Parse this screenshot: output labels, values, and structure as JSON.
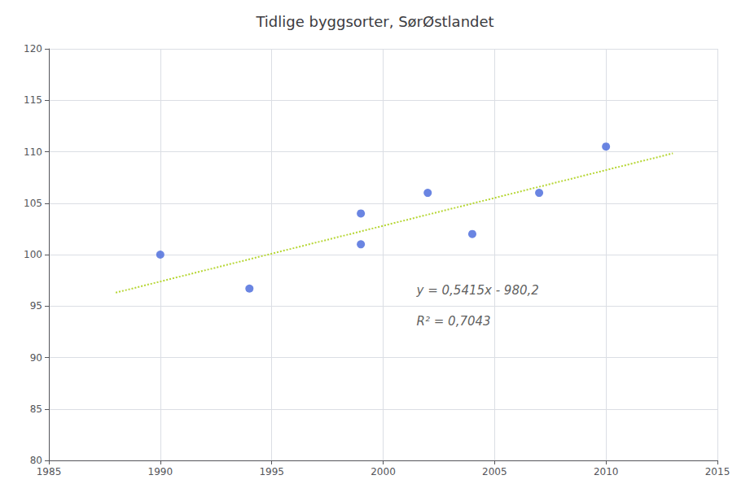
{
  "chart_data": {
    "type": "scatter",
    "title": "Tidlige byggsorter, SørØstlandet",
    "series": [
      {
        "type": "scatter",
        "marker": "circle",
        "x": [
          1990,
          1994,
          1999,
          1999,
          2002,
          2004,
          2007,
          2010
        ],
        "values": [
          100.0,
          96.7,
          104.0,
          101.0,
          106.0,
          102.0,
          106.0,
          110.5
        ]
      },
      {
        "type": "line",
        "line_style": "dotted",
        "x": [
          1988,
          2013
        ],
        "values": [
          96.302,
          109.8395
        ]
      }
    ],
    "annotations": [
      {
        "text": "y = 0,5415x - 980,2",
        "x": 2001.5,
        "y": 96.5
      },
      {
        "text": "R² = 0,7043",
        "x": 2001.5,
        "y": 93.5
      }
    ],
    "xlim": [
      1985,
      2015
    ],
    "xticks": [
      1985,
      1990,
      1995,
      2000,
      2005,
      2010,
      2015
    ],
    "ylim": [
      80,
      120
    ],
    "yticks": [
      80,
      85,
      90,
      95,
      100,
      105,
      110,
      115,
      120
    ],
    "grid": true
  }
}
